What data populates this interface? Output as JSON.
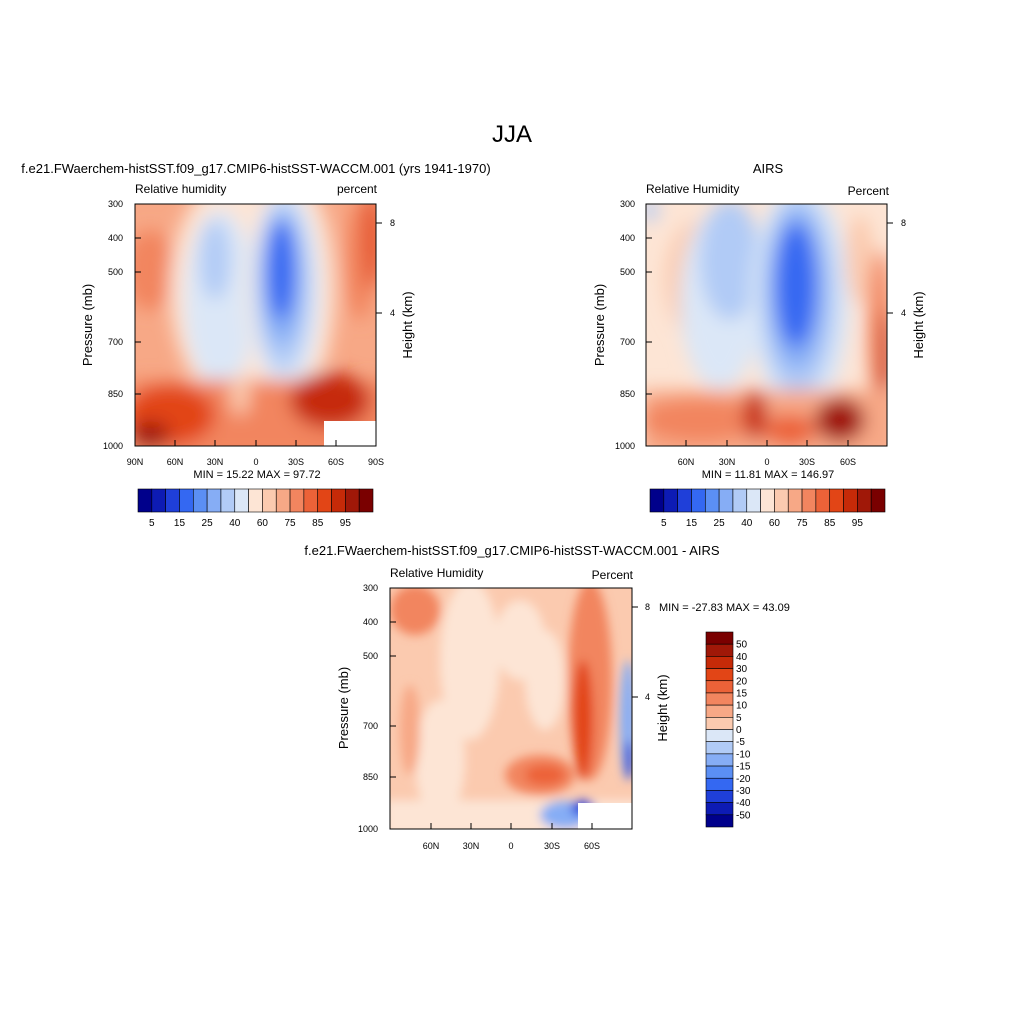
{
  "page_title": "JJA",
  "colors": {
    "cb_rh": [
      "#00008b",
      "#0d1bb4",
      "#1f3fd9",
      "#3468f2",
      "#5b8ff4",
      "#86adf5",
      "#b1cbf6",
      "#dbe7f7",
      "#fde5d5",
      "#fbcaaf",
      "#f7a886",
      "#f2855f",
      "#ec6238",
      "#e24516",
      "#c62a08",
      "#a01808",
      "#7a0000"
    ],
    "cb_diff": [
      "#00008b",
      "#0d1bb4",
      "#1f3fd9",
      "#3468f2",
      "#5b8ff4",
      "#86adf5",
      "#b1cbf6",
      "#dbe7f7",
      "#fde5d5",
      "#fbcaaf",
      "#f7a886",
      "#f2855f",
      "#ec6238",
      "#e24516",
      "#c62a08",
      "#a01808",
      "#7a0000"
    ]
  },
  "chart_data": [
    {
      "type": "heatmap",
      "title": "f.e21.FWaerchem-histSST.f09_g17.CMIP6-histSST-WACCM.001 (yrs 1941-1970)",
      "left_label": "Relative humidity",
      "right_label": "percent",
      "ylabel": "Pressure (mb)",
      "y2label": "Height (km)",
      "y_ticks": [
        "300",
        "400",
        "500",
        "700",
        "850",
        "1000"
      ],
      "y2_ticks": [
        "8",
        "4"
      ],
      "x_ticks": [
        "90N",
        "60N",
        "30N",
        "0",
        "30S",
        "60S",
        "90S"
      ],
      "stats": "MIN =  15.22  MAX =  97.72",
      "colorbar_labels": [
        "5",
        "15",
        "25",
        "40",
        "60",
        "75",
        "85",
        "95"
      ]
    },
    {
      "type": "heatmap",
      "title": "AIRS",
      "left_label": "Relative Humidity",
      "right_label": "Percent",
      "ylabel": "Pressure (mb)",
      "y2label": "Height (km)",
      "y_ticks": [
        "300",
        "400",
        "500",
        "700",
        "850",
        "1000"
      ],
      "y2_ticks": [
        "8",
        "4"
      ],
      "x_ticks": [
        "60N",
        "30N",
        "0",
        "30S",
        "60S"
      ],
      "stats": "MIN =  11.81  MAX = 146.97",
      "colorbar_labels": [
        "5",
        "15",
        "25",
        "40",
        "60",
        "75",
        "85",
        "95"
      ]
    },
    {
      "type": "heatmap",
      "title": "f.e21.FWaerchem-histSST.f09_g17.CMIP6-histSST-WACCM.001 - AIRS",
      "left_label": "Relative Humidity",
      "right_label": "Percent",
      "ylabel": "Pressure (mb)",
      "y2label": "Height (km)",
      "y_ticks": [
        "300",
        "400",
        "500",
        "700",
        "850",
        "1000"
      ],
      "y2_ticks": [
        "8",
        "4"
      ],
      "x_ticks": [
        "60N",
        "30N",
        "0",
        "30S",
        "60S"
      ],
      "stats": "MIN = -27.83  MAX =  43.09",
      "colorbar_labels": [
        "50",
        "40",
        "30",
        "20",
        "15",
        "10",
        "5",
        "0",
        "-5",
        "-10",
        "-15",
        "-20",
        "-30",
        "-40",
        "-50"
      ]
    }
  ]
}
